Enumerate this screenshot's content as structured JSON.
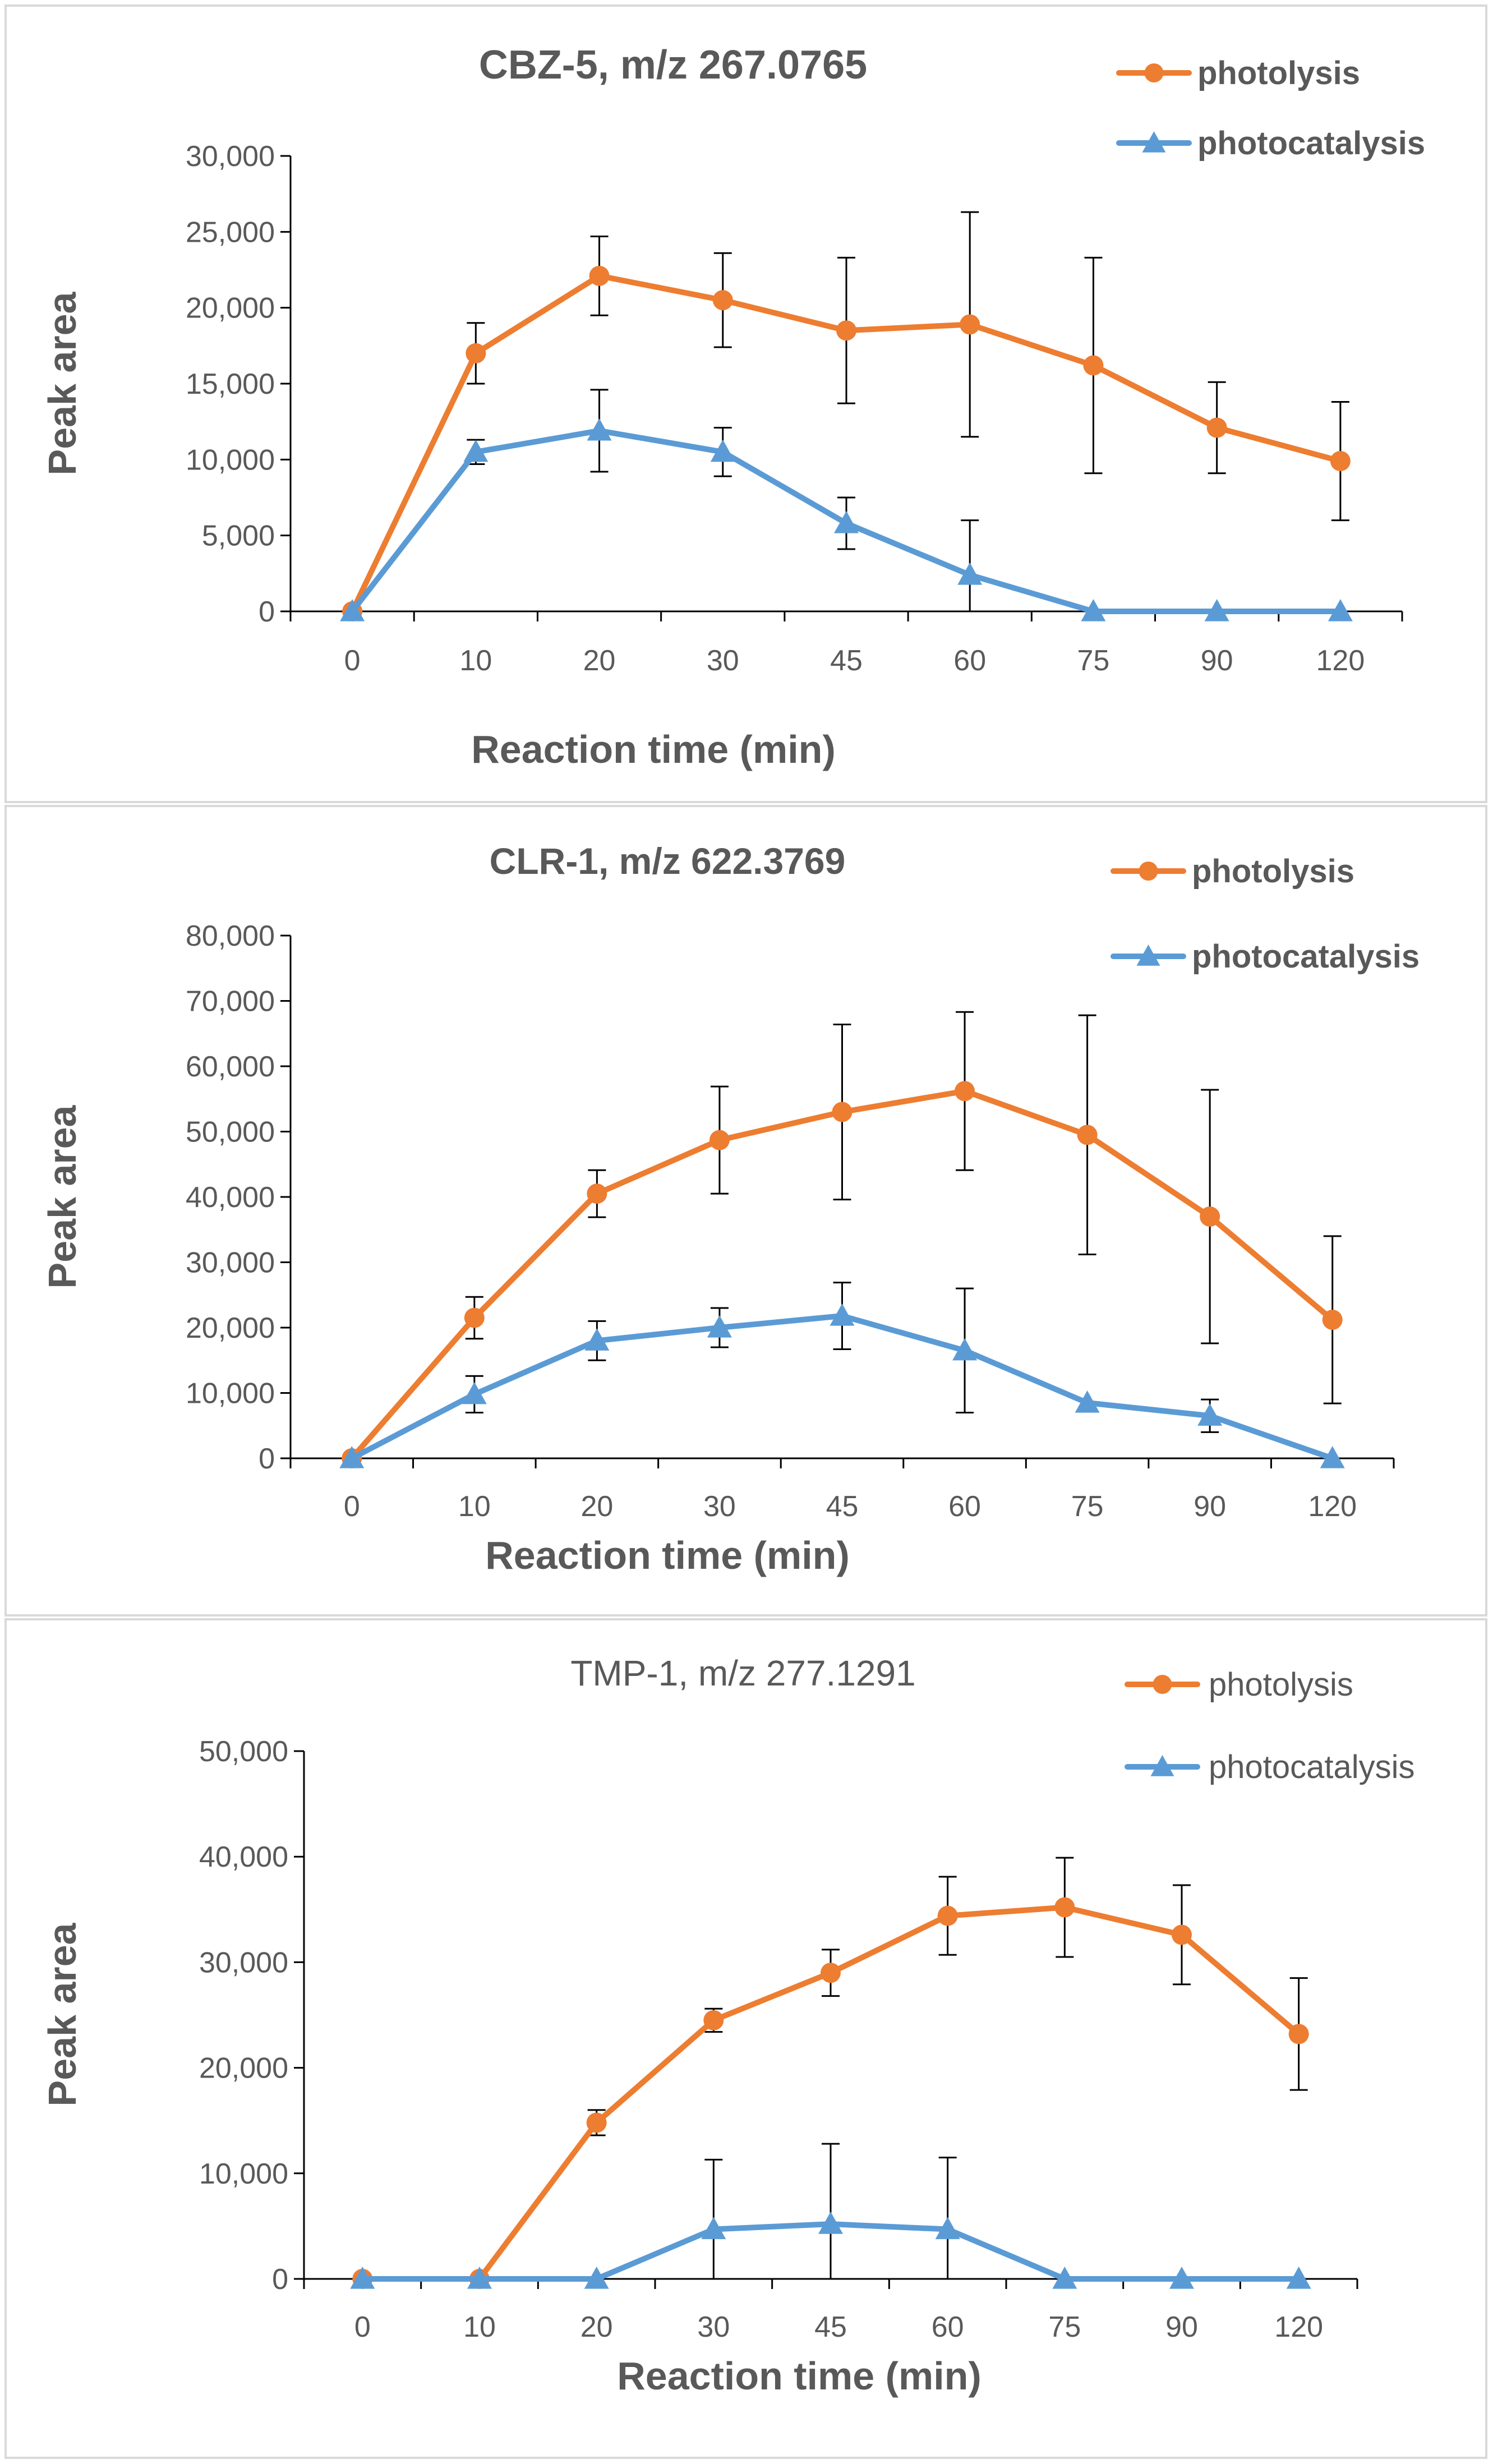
{
  "colors": {
    "photolysis": "#ED7D31",
    "photocatalysis": "#5B9BD5",
    "axis": "#000000",
    "text": "#595959",
    "errorbar": "#000000",
    "frame": "#d9d9d9"
  },
  "chart_data": [
    {
      "type": "line",
      "title": "CBZ-5, m/z 267.0765",
      "xlabel": "Reaction time (min)",
      "ylabel": "Peak area",
      "categories": [
        "0",
        "10",
        "20",
        "30",
        "45",
        "60",
        "75",
        "90",
        "120"
      ],
      "ylim": [
        0,
        30000
      ],
      "yticks": [
        0,
        5000,
        10000,
        15000,
        20000,
        25000,
        30000
      ],
      "ytick_labels": [
        "0",
        "5,000",
        "10,000",
        "15,000",
        "20,000",
        "25,000",
        "30,000"
      ],
      "grid": false,
      "legend": "top-right",
      "series": [
        {
          "name": "photolysis",
          "marker": "circle",
          "values": [
            0,
            17000,
            22100,
            20500,
            18500,
            18900,
            16200,
            12100,
            9900
          ],
          "errors": [
            0,
            2000,
            2600,
            3100,
            4800,
            7400,
            7100,
            3000,
            3900
          ]
        },
        {
          "name": "photocatalysis",
          "marker": "triangle",
          "values": [
            0,
            10500,
            11900,
            10500,
            5800,
            2400,
            0,
            0,
            0
          ],
          "errors": [
            0,
            800,
            2700,
            1600,
            1700,
            3600,
            0,
            0,
            0
          ]
        }
      ]
    },
    {
      "type": "line",
      "title": "CLR-1, m/z 622.3769",
      "xlabel": "Reaction time (min)",
      "ylabel": "Peak area",
      "categories": [
        "0",
        "10",
        "20",
        "30",
        "45",
        "60",
        "75",
        "90",
        "120"
      ],
      "ylim": [
        0,
        80000
      ],
      "yticks": [
        0,
        10000,
        20000,
        30000,
        40000,
        50000,
        60000,
        70000,
        80000
      ],
      "ytick_labels": [
        "0",
        "10,000",
        "20,000",
        "30,000",
        "40,000",
        "50,000",
        "60,000",
        "70,000",
        "80,000"
      ],
      "grid": false,
      "legend": "top-right",
      "series": [
        {
          "name": "photolysis",
          "marker": "circle",
          "values": [
            0,
            21500,
            40500,
            48700,
            53000,
            56200,
            49500,
            37000,
            21200
          ],
          "errors": [
            0,
            3200,
            3600,
            8200,
            13400,
            12100,
            18300,
            19400,
            12800
          ]
        },
        {
          "name": "photocatalysis",
          "marker": "triangle",
          "values": [
            0,
            9800,
            18000,
            20000,
            21800,
            16500,
            8500,
            6500,
            0
          ],
          "errors": [
            0,
            2800,
            3000,
            3000,
            5100,
            9500,
            0,
            2500,
            0
          ]
        }
      ]
    },
    {
      "type": "line",
      "title": "TMP-1, m/z 277.1291",
      "xlabel": "Reaction time (min)",
      "ylabel": "Peak area",
      "categories": [
        "0",
        "10",
        "20",
        "30",
        "45",
        "60",
        "75",
        "90",
        "120"
      ],
      "ylim": [
        0,
        50000
      ],
      "yticks": [
        0,
        10000,
        20000,
        30000,
        40000,
        50000
      ],
      "ytick_labels": [
        "0",
        "10,000",
        "20,000",
        "30,000",
        "40,000",
        "50,000"
      ],
      "grid": false,
      "legend": "top-right",
      "series": [
        {
          "name": "photolysis",
          "marker": "circle",
          "values": [
            0,
            0,
            14800,
            24500,
            29000,
            34400,
            35200,
            32600,
            23200
          ],
          "errors": [
            0,
            0,
            1200,
            1100,
            2200,
            3700,
            4700,
            4700,
            5300
          ]
        },
        {
          "name": "photocatalysis",
          "marker": "triangle",
          "values": [
            0,
            0,
            0,
            4700,
            5200,
            4700,
            0,
            0,
            0
          ],
          "errors": [
            0,
            0,
            0,
            6600,
            7600,
            6800,
            0,
            0,
            0
          ]
        }
      ]
    }
  ]
}
